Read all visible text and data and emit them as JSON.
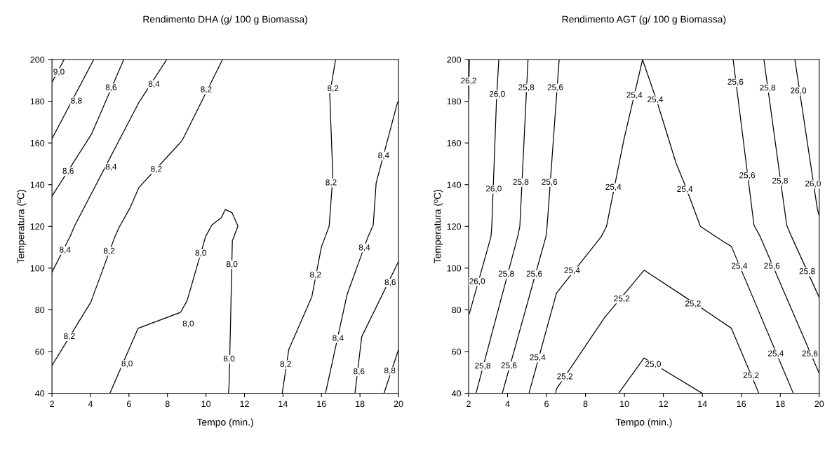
{
  "chart_data": [
    {
      "type": "line",
      "title": "Rendimento DHA (g/ 100 g Biomassa)",
      "xlabel": "Tempo (min.)",
      "ylabel": "Temperatura (ºC)",
      "xlim": [
        2,
        20
      ],
      "ylim": [
        40,
        200
      ],
      "xticks": [
        2,
        4,
        6,
        8,
        10,
        12,
        14,
        16,
        18,
        20
      ],
      "yticks": [
        40,
        60,
        80,
        100,
        120,
        140,
        160,
        180,
        200
      ],
      "series": [
        {
          "color": "#000000",
          "x": [
            2,
            2.63
          ],
          "values": [
            189,
            200
          ]
        },
        {
          "color": "#000000",
          "x": [
            2,
            4.17
          ],
          "values": [
            162,
            200
          ]
        },
        {
          "color": "#000000",
          "x": [
            2,
            4.05,
            5.73
          ],
          "values": [
            134.5,
            164.2,
            200
          ]
        },
        {
          "color": "#000000",
          "x": [
            2,
            2.93,
            3.2,
            6.52,
            7.96
          ],
          "values": [
            98,
            115,
            120.7,
            179.5,
            200
          ]
        },
        {
          "color": "#000000",
          "x": [
            2,
            4.02,
            5.27,
            5.49,
            6.04,
            6.52,
            8.75,
            10.86
          ],
          "values": [
            53.3,
            83.7,
            115.1,
            119.6,
            128.6,
            138.7,
            161,
            200
          ]
        },
        {
          "color": "#000000",
          "x": [
            5.01,
            6.47,
            8.68,
            9.02,
            9.98,
            10.31,
            10.8,
            11.0,
            11.36,
            11.66,
            11.4,
            11.37,
            11.28,
            11.2,
            11.17
          ],
          "values": [
            40,
            71.1,
            78.8,
            84.4,
            115.1,
            120.7,
            124.2,
            128.1,
            126.5,
            120.2,
            113.8,
            113.3,
            75.5,
            44.3,
            40
          ]
        },
        {
          "color": "#000000",
          "x": [
            13.96,
            14.3,
            15.5,
            16.0,
            16.2,
            16.4,
            16.59,
            16.43,
            16.73
          ],
          "values": [
            40,
            60.9,
            86.3,
            110.3,
            115.1,
            120.2,
            144,
            183.2,
            200
          ]
        },
        {
          "color": "#000000",
          "x": [
            16.21,
            17.33,
            18.42,
            18.69,
            18.84,
            19.95,
            20
          ],
          "values": [
            40,
            87.3,
            115.1,
            120.7,
            140.8,
            179.5,
            180
          ]
        },
        {
          "color": "#000000",
          "x": [
            17.74,
            18.09,
            20
          ],
          "values": [
            40,
            67.1,
            103.1
          ]
        },
        {
          "color": "#000000",
          "x": [
            19.25,
            20
          ],
          "values": [
            40,
            60.9
          ]
        }
      ],
      "annotations": [
        {
          "text": "9,0",
          "x": 2.36,
          "y": 193.8
        },
        {
          "text": "8,8",
          "x": 3.27,
          "y": 180
        },
        {
          "text": "8,6",
          "x": 2.84,
          "y": 146.3
        },
        {
          "text": "8,6",
          "x": 5.07,
          "y": 186.4
        },
        {
          "text": "8,4",
          "x": 5.07,
          "y": 148.3
        },
        {
          "text": "8,4",
          "x": 7.3,
          "y": 188
        },
        {
          "text": "8,4",
          "x": 2.68,
          "y": 108.5
        },
        {
          "text": "8,2",
          "x": 10.01,
          "y": 185.4
        },
        {
          "text": "8,2",
          "x": 7.42,
          "y": 147.2
        },
        {
          "text": "8,2",
          "x": 2.9,
          "y": 67.1
        },
        {
          "text": "8,2",
          "x": 4.97,
          "y": 108
        },
        {
          "text": "8,0",
          "x": 5.9,
          "y": 53.9
        },
        {
          "text": "8,0",
          "x": 9.08,
          "y": 73.1
        },
        {
          "text": "8,0",
          "x": 9.73,
          "y": 107
        },
        {
          "text": "8,0",
          "x": 11.35,
          "y": 101.6
        },
        {
          "text": "8,0",
          "x": 11.2,
          "y": 56.3
        },
        {
          "text": "8,2",
          "x": 14.14,
          "y": 53.7
        },
        {
          "text": "8,2",
          "x": 15.69,
          "y": 96.5
        },
        {
          "text": "8,2",
          "x": 16.6,
          "y": 185.9
        },
        {
          "text": "8,2",
          "x": 16.5,
          "y": 140.8
        },
        {
          "text": "8,4",
          "x": 16.86,
          "y": 66.2
        },
        {
          "text": "8,4",
          "x": 18.23,
          "y": 109.6
        },
        {
          "text": "8,4",
          "x": 19.23,
          "y": 153.8
        },
        {
          "text": "8,6",
          "x": 17.95,
          "y": 50.2
        },
        {
          "text": "8,6",
          "x": 19.57,
          "y": 92.9
        },
        {
          "text": "8,8",
          "x": 19.55,
          "y": 50.6
        }
      ]
    },
    {
      "type": "line",
      "title": "Rendimento AGT (g/ 100 g Biomassa)",
      "xlabel": "Tempo (min.)",
      "ylabel": "Temperatura (ºC)",
      "xlim": [
        2,
        20
      ],
      "ylim": [
        40,
        200
      ],
      "xticks": [
        2,
        4,
        6,
        8,
        10,
        12,
        14,
        16,
        18,
        20
      ],
      "yticks": [
        40,
        60,
        80,
        100,
        120,
        140,
        160,
        180,
        200
      ],
      "series": [
        {
          "color": "#000000",
          "x": [
            2.04,
            2
          ],
          "values": [
            200,
            181
          ]
        },
        {
          "color": "#000000",
          "x": [
            3.55,
            3.43,
            3.19,
            3.15,
            2.04
          ],
          "values": [
            200,
            180,
            120,
            115.1,
            78.2
          ]
        },
        {
          "color": "#000000",
          "x": [
            5.05,
            4.63,
            4.52,
            2.38
          ],
          "values": [
            200,
            120,
            115.1,
            40
          ]
        },
        {
          "color": "#000000",
          "x": [
            6.65,
            6.03,
            5.97,
            3.73
          ],
          "values": [
            200,
            120,
            115.1,
            40
          ]
        },
        {
          "color": "#000000",
          "x": [
            5.1,
            6.51,
            8.81,
            9.08,
            9.97,
            10.93,
            11.7,
            12.65,
            13.07,
            13.9,
            15.1,
            15.49,
            18.67
          ],
          "values": [
            40,
            88,
            115.1,
            120,
            161.5,
            200,
            179,
            150.3,
            140.8,
            120,
            112.6,
            110.4,
            40
          ]
        },
        {
          "color": "#000000",
          "x": [
            6.47,
            6.51,
            8.99,
            11.01,
            13.15,
            15.49,
            16.9
          ],
          "values": [
            40,
            42.1,
            76.4,
            99,
            85.9,
            71.2,
            40
          ]
        },
        {
          "color": "#000000",
          "x": [
            9.7,
            11.01,
            13.99
          ],
          "values": [
            40,
            56.9,
            40
          ]
        },
        {
          "color": "#000000",
          "x": [
            15.58,
            16.65,
            16.97,
            20
          ],
          "values": [
            200,
            120.6,
            115.1,
            49.5
          ]
        },
        {
          "color": "#000000",
          "x": [
            17.16,
            18.33,
            18.58,
            20
          ],
          "values": [
            200,
            120.6,
            115.1,
            85.9
          ]
        },
        {
          "color": "#000000",
          "x": [
            18.75,
            19.9,
            20
          ],
          "values": [
            200,
            128.6,
            125
          ]
        }
      ],
      "annotations": [
        {
          "text": "26,2",
          "x": 2.0,
          "y": 189.6
        },
        {
          "text": "26,0",
          "x": 3.47,
          "y": 183.2
        },
        {
          "text": "26,0",
          "x": 3.29,
          "y": 137.8
        },
        {
          "text": "26,0",
          "x": 2.44,
          "y": 93.4
        },
        {
          "text": "25,8",
          "x": 4.96,
          "y": 186.4
        },
        {
          "text": "25,8",
          "x": 4.68,
          "y": 141
        },
        {
          "text": "25,8",
          "x": 3.93,
          "y": 97
        },
        {
          "text": "25,8",
          "x": 2.72,
          "y": 52.9
        },
        {
          "text": "25,6",
          "x": 6.45,
          "y": 186.4
        },
        {
          "text": "25,6",
          "x": 6.15,
          "y": 141
        },
        {
          "text": "25,6",
          "x": 5.37,
          "y": 97
        },
        {
          "text": "25,6",
          "x": 4.07,
          "y": 53.1
        },
        {
          "text": "25,4",
          "x": 10.51,
          "y": 182.7
        },
        {
          "text": "25,4",
          "x": 11.58,
          "y": 180.6
        },
        {
          "text": "25,4",
          "x": 13.1,
          "y": 137.6
        },
        {
          "text": "25,4",
          "x": 9.43,
          "y": 138.6
        },
        {
          "text": "25,4",
          "x": 7.31,
          "y": 98.7
        },
        {
          "text": "25,4",
          "x": 5.54,
          "y": 56.9
        },
        {
          "text": "25,4",
          "x": 15.9,
          "y": 100.8
        },
        {
          "text": "25,4",
          "x": 17.77,
          "y": 58.8
        },
        {
          "text": "25,2",
          "x": 9.86,
          "y": 85.1
        },
        {
          "text": "25,2",
          "x": 13.52,
          "y": 82.7
        },
        {
          "text": "25,2",
          "x": 6.94,
          "y": 47.8
        },
        {
          "text": "25,2",
          "x": 16.5,
          "y": 48.3
        },
        {
          "text": "25,0",
          "x": 11.47,
          "y": 53.7
        },
        {
          "text": "25,6",
          "x": 15.7,
          "y": 189
        },
        {
          "text": "25,6",
          "x": 16.3,
          "y": 144.2
        },
        {
          "text": "25,6",
          "x": 17.57,
          "y": 100.8
        },
        {
          "text": "25,6",
          "x": 19.52,
          "y": 58.8
        },
        {
          "text": "25,8",
          "x": 17.35,
          "y": 186.2
        },
        {
          "text": "25,8",
          "x": 17.99,
          "y": 141.6
        },
        {
          "text": "25,8",
          "x": 19.38,
          "y": 98.2
        },
        {
          "text": "26,0",
          "x": 18.93,
          "y": 184.8
        },
        {
          "text": "26,0",
          "x": 19.68,
          "y": 140.2
        }
      ]
    }
  ]
}
